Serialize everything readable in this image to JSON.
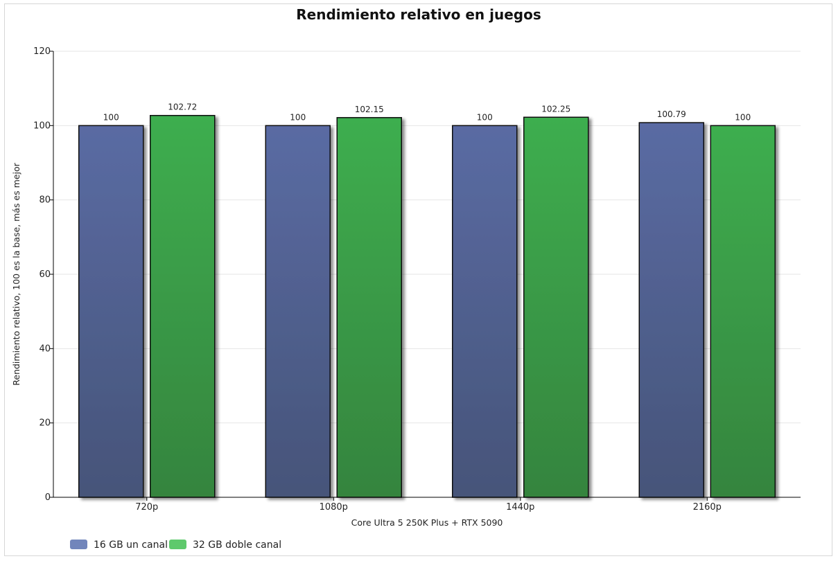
{
  "chart_data": {
    "type": "bar",
    "title": "Rendimiento relativo en juegos",
    "xlabel": "Core Ultra 5 250K Plus + RTX 5090",
    "ylabel": "Rendimiento relativo, 100 es la base, más es mejor",
    "categories": [
      "720p",
      "1080p",
      "1440p",
      "2160p"
    ],
    "ylim": [
      0,
      120
    ],
    "yticks": [
      0,
      20,
      40,
      60,
      80,
      100,
      120
    ],
    "grid": true,
    "legend_position": "bottom-left",
    "series": [
      {
        "name": "16 GB un canal",
        "values": [
          100,
          100,
          100,
          100.79
        ],
        "labels": [
          "100",
          "100",
          "100",
          "100.79"
        ],
        "color_top": "#5a6ba3",
        "color_bottom": "#465479",
        "legend_color": "#7185bb"
      },
      {
        "name": "32 GB doble canal",
        "values": [
          102.72,
          102.15,
          102.25,
          100
        ],
        "labels": [
          "102.72",
          "102.15",
          "102.25",
          "100"
        ],
        "color_top": "#3eae4f",
        "color_bottom": "#35843e",
        "legend_color": "#5ec96c"
      }
    ]
  }
}
